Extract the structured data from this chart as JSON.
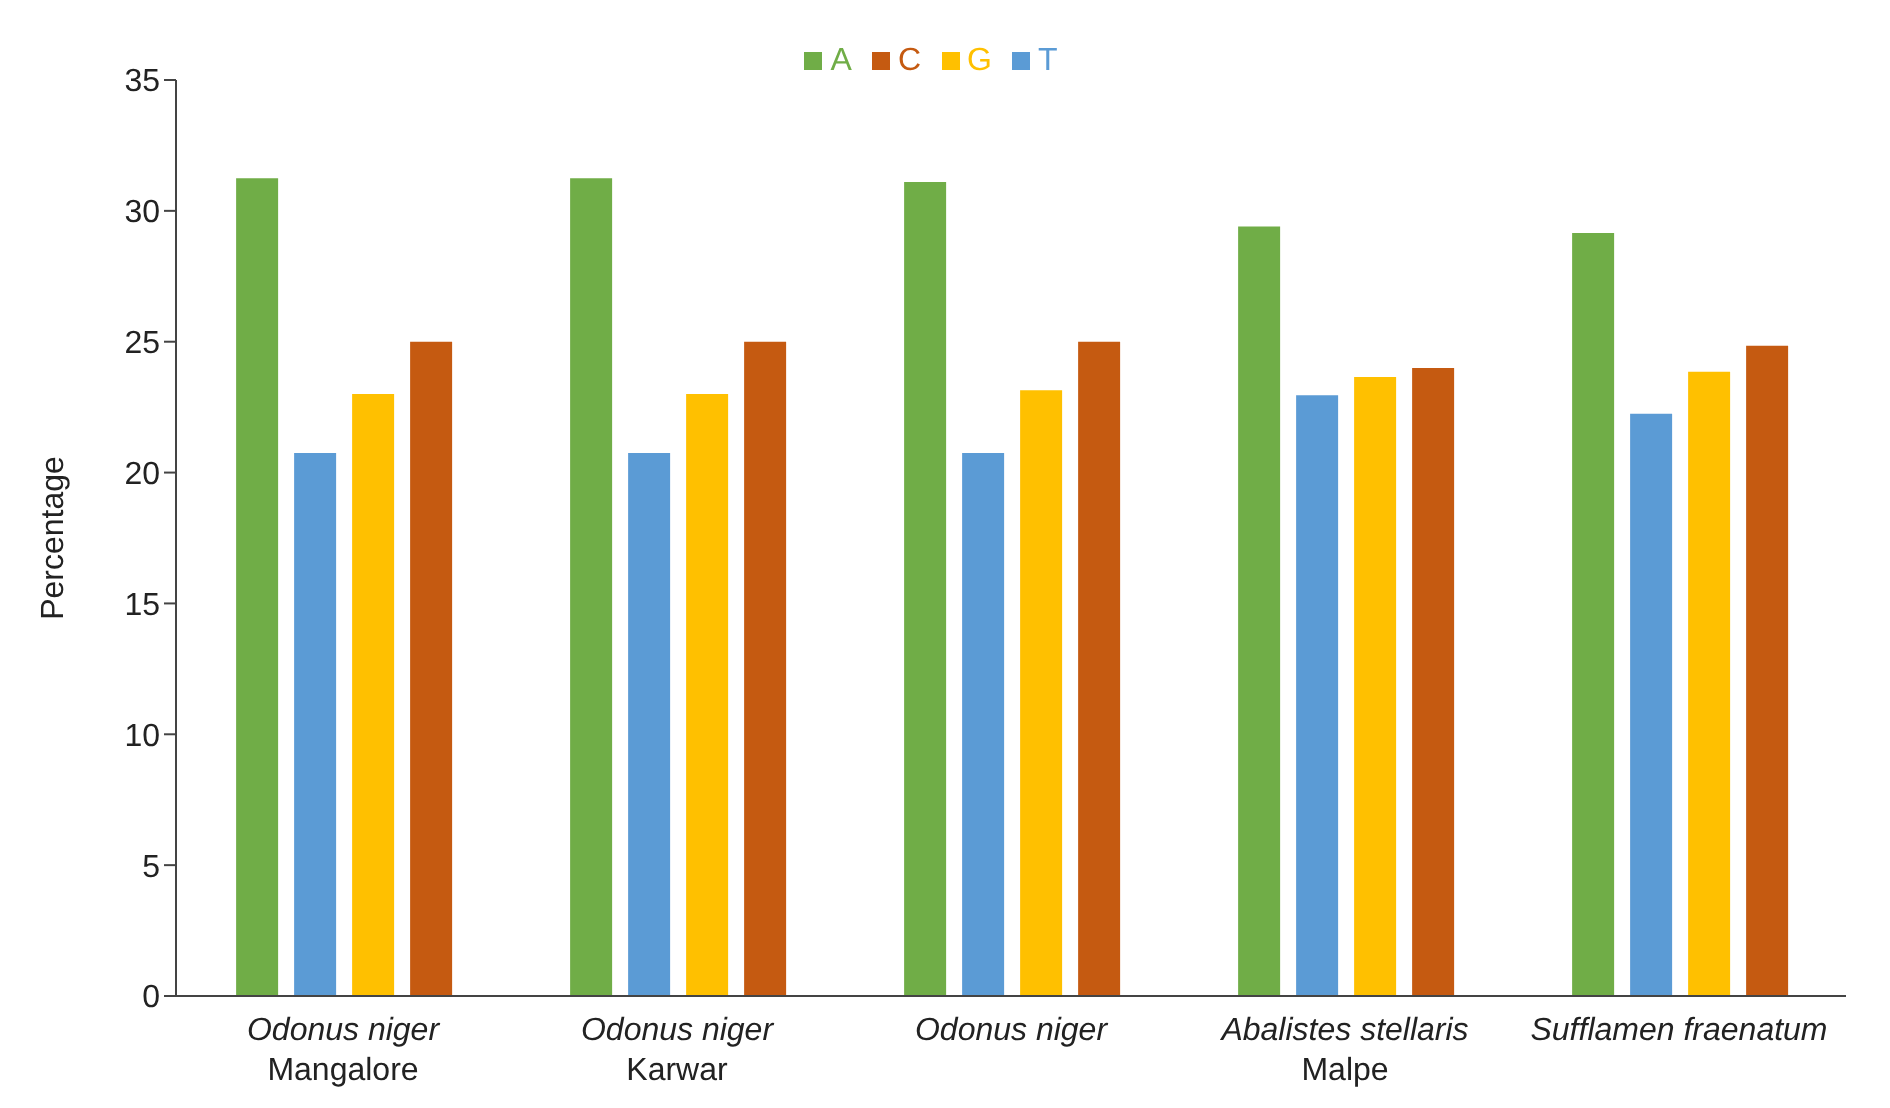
{
  "chart_data": {
    "type": "bar",
    "ylabel": "Percentage",
    "categories": [
      "Odonus niger\nMangalore",
      "Odonus niger\nKarwar",
      "Odonus niger",
      "Abalistes stellaris\nMalpe",
      "Sufflamen fraenatum"
    ],
    "series": [
      {
        "name": "A",
        "color": "#70ad47",
        "values": [
          31.25,
          31.25,
          31.1,
          29.4,
          29.15
        ]
      },
      {
        "name": "T",
        "color": "#5b9bd5",
        "values": [
          20.75,
          20.75,
          20.75,
          22.95,
          22.25
        ]
      },
      {
        "name": "G",
        "color": "#ffc000",
        "values": [
          23.0,
          23.0,
          23.15,
          23.65,
          23.85
        ]
      },
      {
        "name": "C",
        "color": "#c55a11",
        "values": [
          25.0,
          25.0,
          25.0,
          24.0,
          24.85
        ]
      }
    ],
    "ylim": [
      0,
      35
    ],
    "yticks": [
      0,
      5,
      10,
      15,
      20,
      25,
      30,
      35
    ],
    "grid": false,
    "legend": "top"
  }
}
